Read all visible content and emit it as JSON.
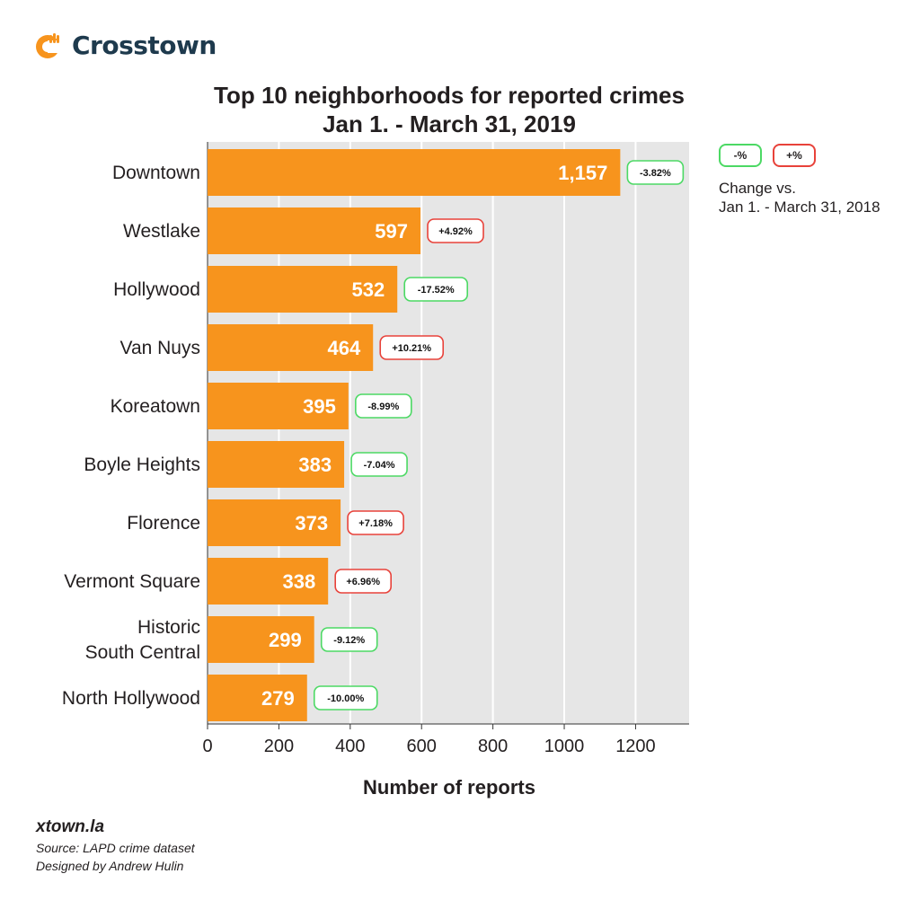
{
  "brand": {
    "name": "Crosstown",
    "logo_icon": "crosstown-logo-icon",
    "accent": "#f7941d"
  },
  "title_line1": "Top 10 neighborhoods for reported crimes",
  "title_line2": "Jan 1. - March 31, 2019",
  "legend": {
    "decrease_label": "-%",
    "increase_label": "+%",
    "caption_line1": "Change vs.",
    "caption_line2": "Jan 1. - March 31, 2018",
    "decrease_color": "#4cd964",
    "increase_color": "#e8423a"
  },
  "chart_data": {
    "type": "bar",
    "orientation": "horizontal",
    "categories": [
      "Downtown",
      "Westlake",
      "Hollywood",
      "Van Nuys",
      "Koreatown",
      "Boyle Heights",
      "Florence",
      "Vermont Square",
      "Historic South Central",
      "North Hollywood"
    ],
    "category_lines": [
      [
        "Downtown"
      ],
      [
        "Westlake"
      ],
      [
        "Hollywood"
      ],
      [
        "Van Nuys"
      ],
      [
        "Koreatown"
      ],
      [
        "Boyle Heights"
      ],
      [
        "Florence"
      ],
      [
        "Vermont Square"
      ],
      [
        "Historic",
        "South Central"
      ],
      [
        "North Hollywood"
      ]
    ],
    "values": [
      1157,
      597,
      532,
      464,
      395,
      383,
      373,
      338,
      299,
      279
    ],
    "value_labels": [
      "1,157",
      "597",
      "532",
      "464",
      "395",
      "383",
      "373",
      "338",
      "299",
      "279"
    ],
    "changes": [
      "-3.82%",
      "+4.92%",
      "-17.52%",
      "+10.21%",
      "-8.99%",
      "-7.04%",
      "+7.18%",
      "+6.96%",
      "-9.12%",
      "-10.00%"
    ],
    "xlabel": "Number of reports",
    "ylabel": "",
    "xlim": [
      0,
      1350
    ],
    "xticks": [
      0,
      200,
      400,
      600,
      800,
      1000,
      1200
    ],
    "grid": true,
    "bar_color": "#f7941d",
    "plot_background": "#e6e6e6"
  },
  "footer": {
    "site": "xtown.la",
    "source": "Source: LAPD crime dataset",
    "credit": "Designed by Andrew Hulin"
  }
}
